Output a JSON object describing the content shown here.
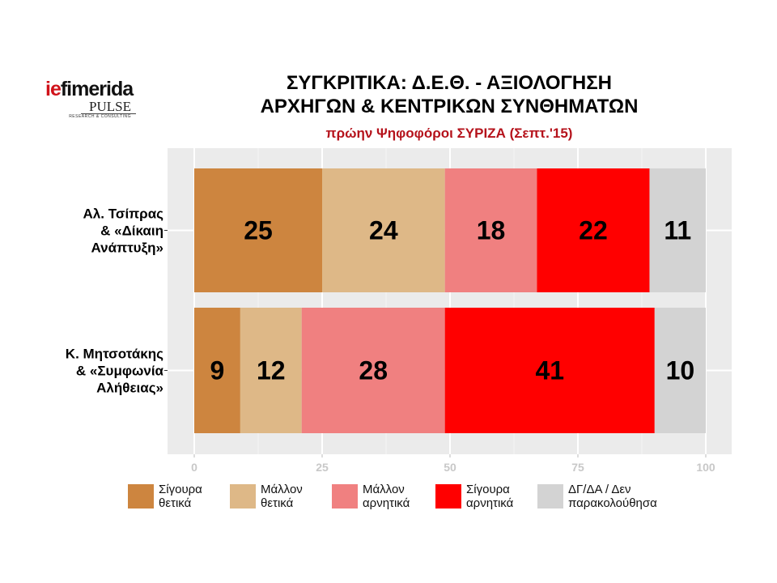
{
  "header": {
    "logo_brand_part1": "ie",
    "logo_brand_part2": "fimerida",
    "logo_sub": "PULSE",
    "logo_tagline": "RESEARCH & CONSULTING",
    "title_line1": "ΣΥΓΚΡΙΤΙΚΑ:  Δ.Ε.Θ. - ΑΞΙΟΛΟΓΗΣΗ",
    "title_line2": "ΑΡΧΗΓΩΝ & ΚΕΝΤΡΙΚΩΝ ΣΥΝΘΗΜΑΤΩΝ",
    "subtitle": "πρώην Ψηφοφόροι ΣΥΡΙΖΑ (Σεπτ.'15)"
  },
  "colors": {
    "panel_bg": "#ebebeb",
    "grid_major": "#ffffff",
    "grid_minor": "#f4f4f4",
    "title": "#000000",
    "subtitle": "#b5121b"
  },
  "chart_data": {
    "type": "bar",
    "orientation": "horizontal",
    "stacked": true,
    "categories": [
      [
        "Αλ. Τσίπρας",
        "& «Δίκαιη",
        "Ανάπτυξη»"
      ],
      [
        "Κ. Μητσοτάκης",
        "& «Συμφωνία",
        "Αλήθειας»"
      ]
    ],
    "series": [
      {
        "name": "Σίγουρα\nθετικά",
        "color": "#cd853f",
        "values": [
          25,
          9
        ]
      },
      {
        "name": "Μάλλον\nθετικά",
        "color": "#deb887",
        "values": [
          24,
          12
        ]
      },
      {
        "name": "Μάλλον\nαρνητικά",
        "color": "#f08080",
        "values": [
          18,
          28
        ]
      },
      {
        "name": "Σίγουρα\nαρνητικά",
        "color": "#ff0000",
        "values": [
          22,
          41
        ]
      },
      {
        "name": "ΔΓ/ΔΑ / Δεν\nπαρακολούθησα",
        "color": "#d3d3d3",
        "values": [
          11,
          10
        ]
      }
    ],
    "xlim": [
      0,
      100
    ],
    "x_ticks": [
      0,
      25,
      50,
      75,
      100
    ],
    "grid": true,
    "legend_position": "bottom"
  }
}
